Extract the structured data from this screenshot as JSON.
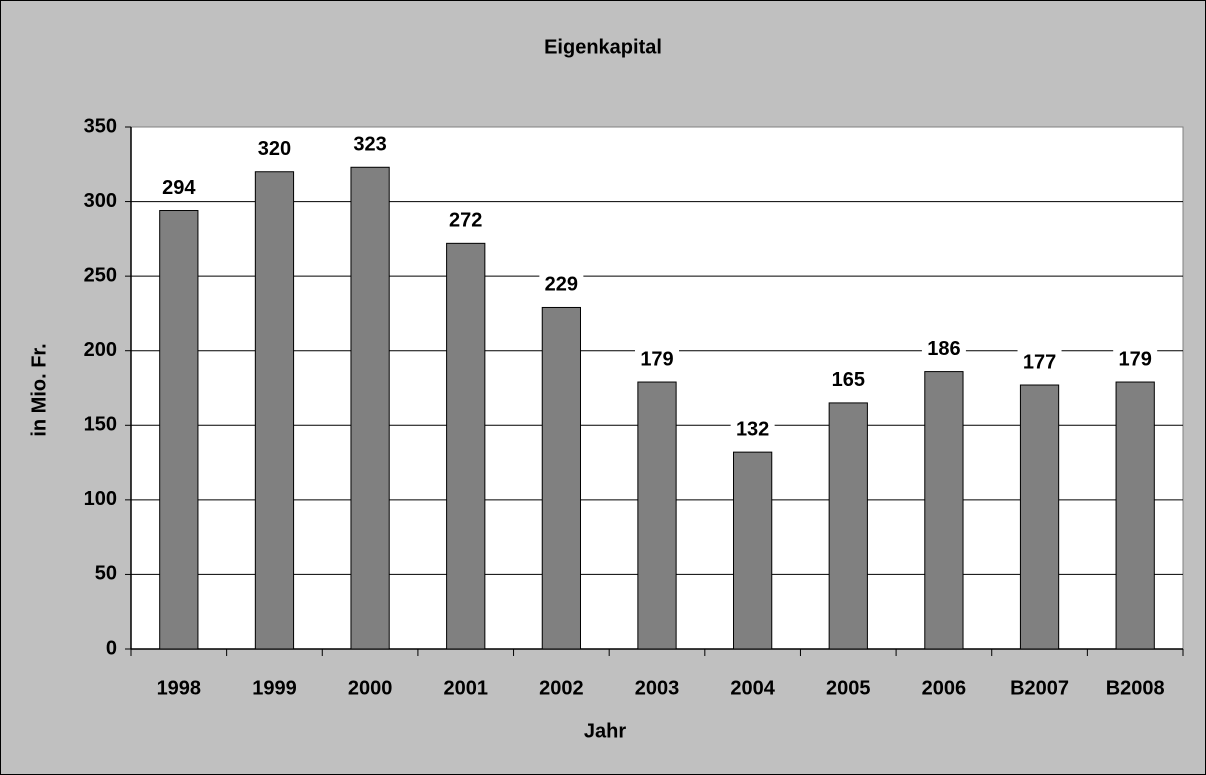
{
  "chart_data": {
    "type": "bar",
    "title": "Eigenkapital",
    "x_label": "Jahr",
    "y_label": "in Mio. Fr.",
    "categories": [
      "1998",
      "1999",
      "2000",
      "2001",
      "2002",
      "2003",
      "2004",
      "2005",
      "2006",
      "B2007",
      "B2008"
    ],
    "values": [
      294,
      320,
      323,
      272,
      229,
      179,
      132,
      165,
      186,
      177,
      179
    ],
    "color": "#808080",
    "ylim": [
      0,
      350
    ],
    "yticks": [
      0,
      50,
      100,
      150,
      200,
      250,
      300,
      350
    ],
    "grid": true
  }
}
